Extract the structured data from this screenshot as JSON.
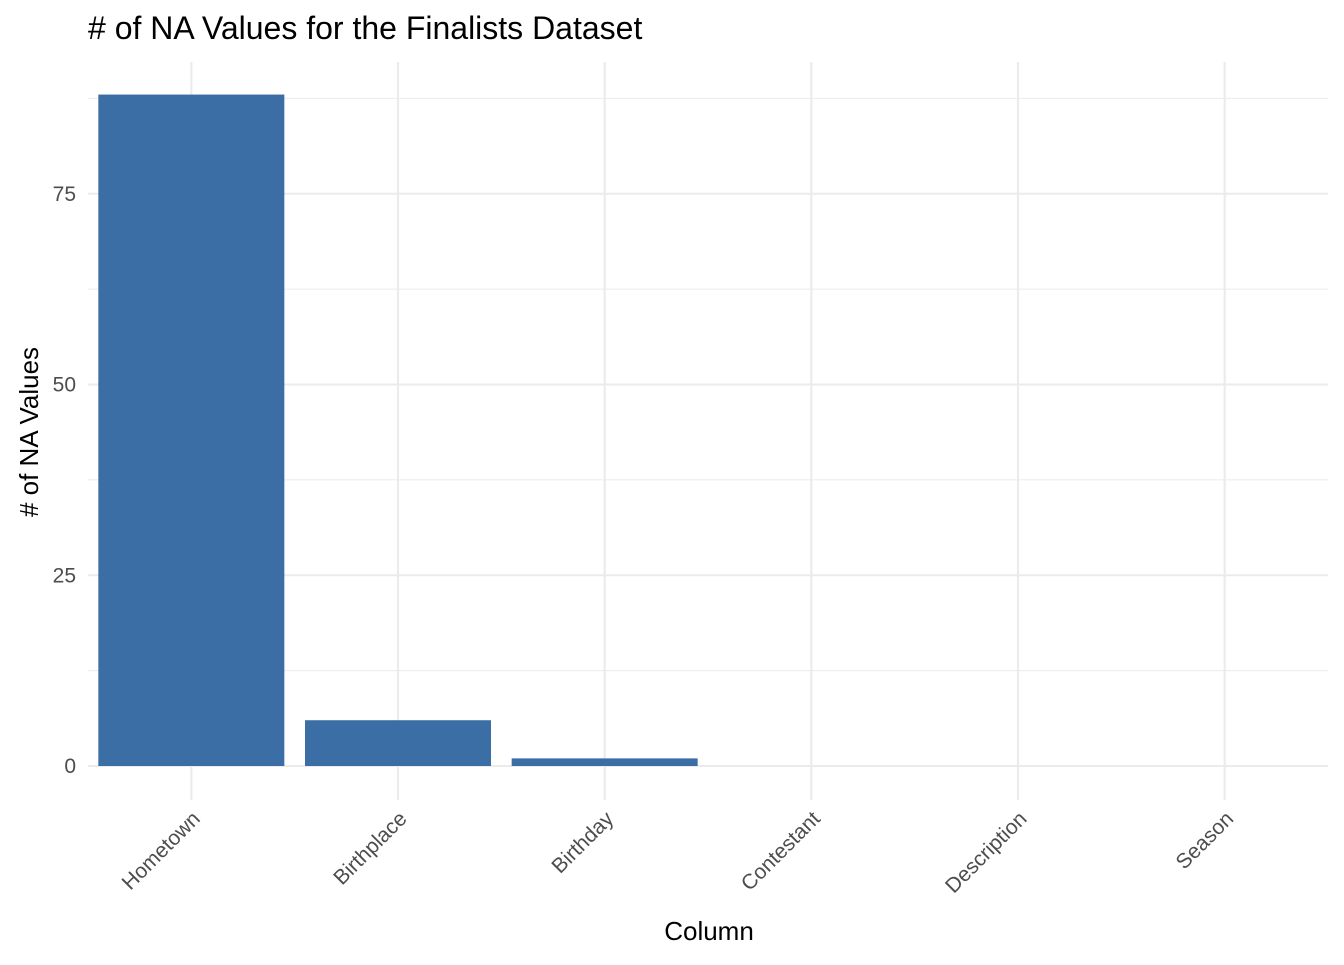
{
  "chart_data": {
    "type": "bar",
    "title": "# of NA Values for the Finalists Dataset",
    "xlabel": "Column",
    "ylabel": "# of NA Values",
    "categories": [
      "Hometown",
      "Birthplace",
      "Birthday",
      "Contestant",
      "Description",
      "Season"
    ],
    "values": [
      88,
      6,
      1,
      0,
      0,
      0
    ],
    "ylim": [
      0,
      92
    ],
    "yticks": [
      0,
      25,
      50,
      75
    ],
    "ytick_labels": [
      "0",
      "25",
      "50",
      "75"
    ],
    "grid": true,
    "legend": "none",
    "bar_color": "#3a6ea5"
  }
}
